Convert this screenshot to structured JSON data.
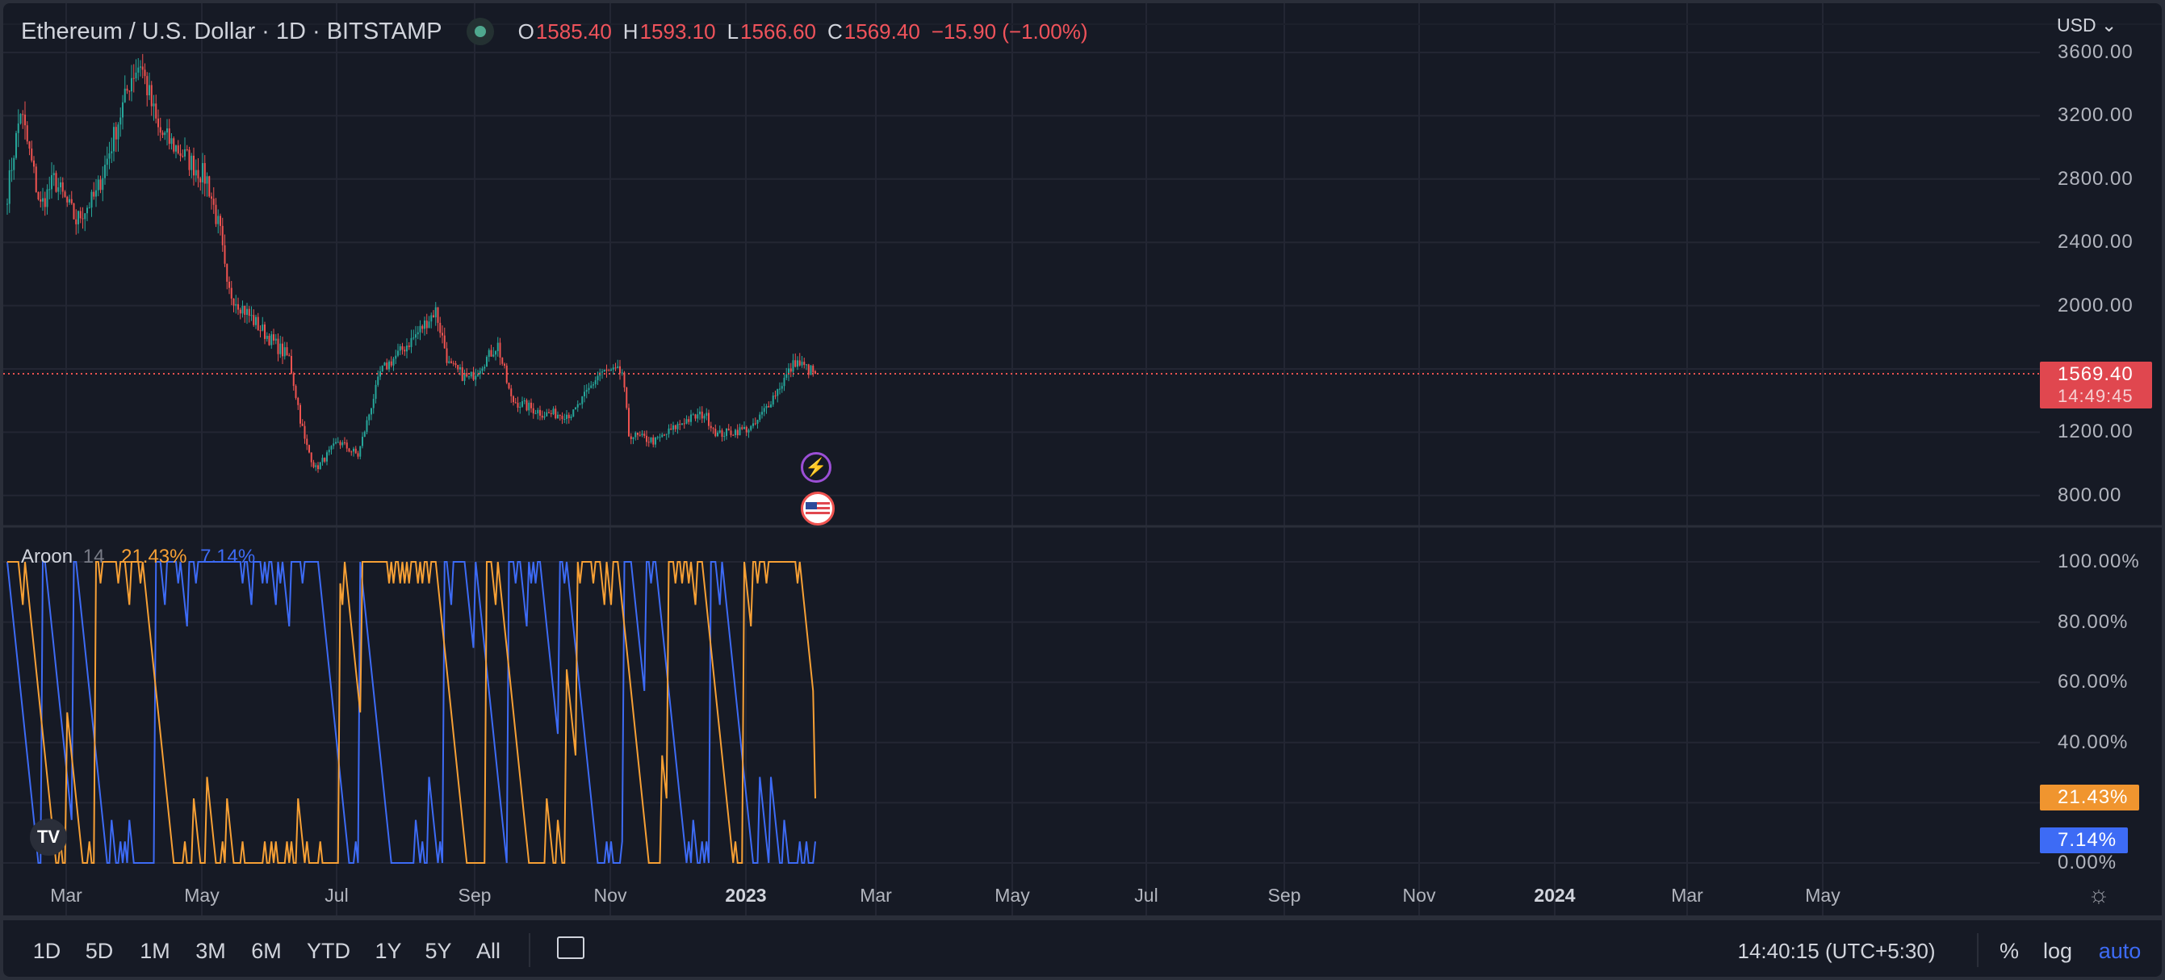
{
  "header": {
    "symbol": "Ethereum / U.S. Dollar · 1D · BITSTAMP",
    "o_label": "O",
    "o": "1585.40",
    "h_label": "H",
    "h": "1593.10",
    "l_label": "L",
    "l": "1566.60",
    "c_label": "C",
    "c": "1569.40",
    "change": "−15.90 (−1.00%)"
  },
  "currency": "USD",
  "price_axis": [
    "3600.00",
    "3200.00",
    "2800.00",
    "2400.00",
    "2000.00",
    "1200.00",
    "800.00"
  ],
  "last_price": {
    "price": "1569.40",
    "countdown": "14:49:45"
  },
  "aroon": {
    "name": "Aroon",
    "length": "14",
    "up": "21.43%",
    "down": "7.14%",
    "axis": [
      "100.00%",
      "80.00%",
      "60.00%",
      "40.00%",
      "0.00%"
    ]
  },
  "time_axis": [
    {
      "t": "Mar"
    },
    {
      "t": "May"
    },
    {
      "t": "Jul"
    },
    {
      "t": "Sep"
    },
    {
      "t": "Nov"
    },
    {
      "t": "2023",
      "year": true
    },
    {
      "t": "Mar"
    },
    {
      "t": "May"
    },
    {
      "t": "Jul"
    },
    {
      "t": "Sep"
    },
    {
      "t": "Nov"
    },
    {
      "t": "2024",
      "year": true
    },
    {
      "t": "Mar"
    },
    {
      "t": "May"
    }
  ],
  "ranges": [
    "1D",
    "5D",
    "1M",
    "3M",
    "6M",
    "YTD",
    "1Y",
    "5Y",
    "All"
  ],
  "footer": {
    "time": "14:40:15 (UTC+5:30)",
    "percent": "%",
    "log": "log",
    "auto": "auto"
  },
  "colors": {
    "up": "#26a69a",
    "down": "#ef5350",
    "aroon_up": "#f7a035",
    "aroon_down": "#3d6bf5",
    "auto": "#3d6bf5"
  },
  "chart_data": {
    "type": "candlestick",
    "x_unit": "days since 2022-02-01",
    "series_anchors": [
      [
        0,
        2711
      ],
      [
        6,
        3234
      ],
      [
        15,
        2624
      ],
      [
        21,
        2798
      ],
      [
        31,
        2537
      ],
      [
        40,
        2700
      ],
      [
        46,
        2973
      ],
      [
        56,
        3452
      ],
      [
        60,
        3540
      ],
      [
        68,
        3104
      ],
      [
        78,
        2973
      ],
      [
        90,
        2798
      ],
      [
        96,
        2450
      ],
      [
        99,
        2101
      ],
      [
        115,
        1839
      ],
      [
        127,
        1665
      ],
      [
        134,
        1142
      ],
      [
        139,
        967
      ],
      [
        149,
        1142
      ],
      [
        158,
        1054
      ],
      [
        168,
        1578
      ],
      [
        177,
        1708
      ],
      [
        183,
        1796
      ],
      [
        193,
        1970
      ],
      [
        199,
        1621
      ],
      [
        208,
        1534
      ],
      [
        221,
        1752
      ],
      [
        227,
        1403
      ],
      [
        242,
        1316
      ],
      [
        255,
        1316
      ],
      [
        267,
        1578
      ],
      [
        277,
        1578
      ],
      [
        280,
        1185
      ],
      [
        292,
        1142
      ],
      [
        305,
        1272
      ],
      [
        314,
        1316
      ],
      [
        320,
        1185
      ],
      [
        336,
        1229
      ],
      [
        348,
        1490
      ],
      [
        355,
        1647
      ],
      [
        364,
        1569
      ]
    ],
    "ylim": [
      800,
      3600
    ]
  }
}
